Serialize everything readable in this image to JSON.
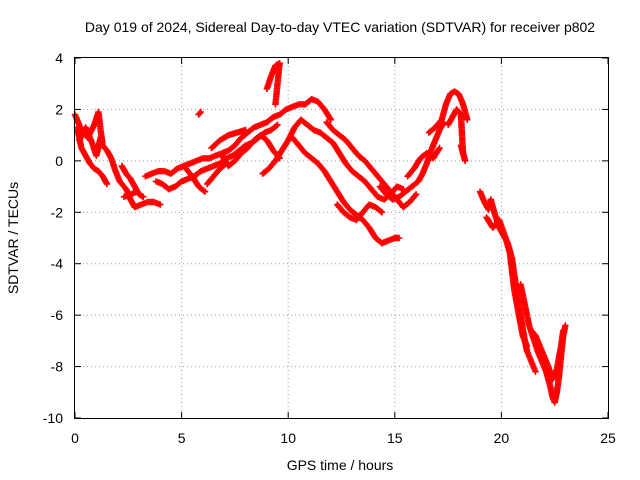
{
  "chart_data": {
    "type": "scatter",
    "title": "Day 019 of 2024, Sidereal Day-to-day VTEC variation (SDTVAR) for receiver p802",
    "xlabel": "GPS time / hours",
    "ylabel": "SDTVAR / TECUs",
    "xlim": [
      0,
      25
    ],
    "ylim": [
      -10,
      4
    ],
    "xticks": [
      0,
      5,
      10,
      15,
      20,
      25
    ],
    "yticks": [
      -10,
      -8,
      -6,
      -4,
      -2,
      0,
      2,
      4
    ],
    "xtick_labels": [
      "0",
      "5",
      "10",
      "15",
      "20",
      "25"
    ],
    "ytick_labels": [
      "-10",
      "-8",
      "-6",
      "-4",
      "-2",
      "0",
      "2",
      "4"
    ],
    "grid": true,
    "marker": "+",
    "series": [
      {
        "name": "p802",
        "color": "#ff0000",
        "tracks": [
          [
            [
              0.0,
              1.8
            ],
            [
              0.3,
              1.2
            ],
            [
              0.6,
              0.9
            ],
            [
              0.9,
              1.4
            ],
            [
              1.1,
              1.9
            ],
            [
              1.2,
              1.2
            ],
            [
              1.3,
              0.6
            ],
            [
              1.5,
              0.4
            ],
            [
              1.7,
              0.1
            ],
            [
              1.9,
              -0.4
            ],
            [
              2.1,
              -0.8
            ],
            [
              2.4,
              -1.1
            ],
            [
              2.6,
              -1.5
            ],
            [
              2.8,
              -1.8
            ],
            [
              3.1,
              -1.7
            ],
            [
              3.4,
              -1.6
            ],
            [
              3.7,
              -1.6
            ],
            [
              4.0,
              -1.7
            ]
          ],
          [
            [
              0.1,
              1.3
            ],
            [
              0.3,
              0.5
            ],
            [
              0.5,
              0.2
            ],
            [
              0.7,
              -0.1
            ],
            [
              0.9,
              -0.3
            ],
            [
              1.1,
              -0.4
            ],
            [
              1.3,
              -0.6
            ],
            [
              1.5,
              -0.9
            ]
          ],
          [
            [
              0.2,
              0.8
            ],
            [
              0.5,
              1.3
            ],
            [
              0.8,
              0.7
            ],
            [
              1.0,
              0.2
            ],
            [
              1.2,
              0.9
            ]
          ],
          [
            [
              2.2,
              -0.2
            ],
            [
              2.4,
              -0.5
            ],
            [
              2.6,
              -0.7
            ],
            [
              2.8,
              -1.0
            ],
            [
              3.0,
              -1.3
            ],
            [
              3.2,
              -1.4
            ]
          ],
          [
            [
              2.3,
              -1.4
            ],
            [
              2.6,
              -1.3
            ],
            [
              2.9,
              -1.2
            ]
          ],
          [
            [
              3.3,
              -0.6
            ],
            [
              3.6,
              -0.5
            ],
            [
              3.9,
              -0.4
            ],
            [
              4.2,
              -0.4
            ],
            [
              4.5,
              -0.5
            ],
            [
              4.8,
              -0.3
            ],
            [
              5.1,
              -0.2
            ],
            [
              5.4,
              -0.1
            ],
            [
              5.7,
              0.0
            ],
            [
              6.0,
              0.1
            ],
            [
              6.3,
              0.1
            ],
            [
              6.6,
              0.2
            ],
            [
              6.9,
              0.3
            ],
            [
              7.2,
              0.4
            ],
            [
              7.5,
              0.6
            ],
            [
              7.8,
              0.9
            ],
            [
              8.1,
              1.1
            ],
            [
              8.4,
              1.3
            ],
            [
              8.7,
              1.4
            ],
            [
              9.0,
              1.5
            ],
            [
              9.3,
              1.7
            ],
            [
              9.6,
              1.8
            ],
            [
              9.9,
              2.0
            ],
            [
              10.2,
              2.1
            ],
            [
              10.5,
              2.2
            ],
            [
              10.8,
              2.2
            ],
            [
              11.1,
              2.4
            ],
            [
              11.4,
              2.3
            ],
            [
              11.7,
              2.0
            ],
            [
              12.0,
              1.6
            ]
          ],
          [
            [
              3.8,
              -0.8
            ],
            [
              4.1,
              -0.9
            ],
            [
              4.4,
              -1.1
            ],
            [
              4.7,
              -1.0
            ],
            [
              5.0,
              -0.8
            ],
            [
              5.3,
              -0.7
            ],
            [
              5.6,
              -0.6
            ],
            [
              5.9,
              -0.4
            ],
            [
              6.2,
              -0.3
            ],
            [
              6.5,
              -0.2
            ],
            [
              6.8,
              -0.1
            ],
            [
              7.1,
              0.1
            ],
            [
              7.4,
              0.2
            ],
            [
              7.7,
              0.4
            ],
            [
              8.0,
              0.6
            ],
            [
              8.3,
              0.7
            ],
            [
              8.6,
              0.9
            ],
            [
              8.9,
              1.1
            ],
            [
              9.2,
              1.2
            ],
            [
              9.5,
              1.4
            ]
          ],
          [
            [
              5.2,
              -0.3
            ],
            [
              5.5,
              -0.6
            ],
            [
              5.8,
              -1.0
            ],
            [
              6.1,
              -1.2
            ]
          ],
          [
            [
              6.2,
              -0.9
            ],
            [
              6.5,
              -0.6
            ],
            [
              6.8,
              -0.3
            ],
            [
              7.1,
              -0.1
            ]
          ],
          [
            [
              5.8,
              1.8
            ],
            [
              5.9,
              1.9
            ]
          ],
          [
            [
              6.4,
              0.5
            ],
            [
              6.8,
              0.8
            ],
            [
              7.2,
              1.0
            ],
            [
              7.6,
              1.1
            ],
            [
              8.0,
              1.2
            ]
          ],
          [
            [
              6.9,
              0.2
            ],
            [
              7.2,
              -0.2
            ],
            [
              7.5,
              0.0
            ],
            [
              7.8,
              0.3
            ],
            [
              8.1,
              0.5
            ],
            [
              8.4,
              0.8
            ],
            [
              8.7,
              1.0
            ],
            [
              9.0,
              0.8
            ],
            [
              9.3,
              0.4
            ],
            [
              9.6,
              0.1
            ]
          ],
          [
            [
              9.0,
              2.8
            ],
            [
              9.2,
              3.3
            ],
            [
              9.4,
              3.7
            ],
            [
              9.6,
              3.8
            ],
            [
              9.5,
              3.0
            ],
            [
              9.4,
              2.2
            ]
          ],
          [
            [
              8.8,
              -0.5
            ],
            [
              9.1,
              -0.3
            ],
            [
              9.4,
              0.0
            ],
            [
              9.7,
              0.4
            ],
            [
              10.0,
              0.8
            ],
            [
              10.3,
              1.3
            ],
            [
              10.6,
              1.6
            ],
            [
              10.9,
              1.4
            ],
            [
              11.2,
              1.2
            ],
            [
              11.5,
              1.1
            ],
            [
              11.8,
              0.9
            ],
            [
              12.1,
              0.7
            ],
            [
              12.4,
              0.3
            ],
            [
              12.7,
              -0.1
            ],
            [
              13.0,
              -0.4
            ],
            [
              13.3,
              -0.6
            ],
            [
              13.6,
              -0.8
            ],
            [
              13.9,
              -1.1
            ],
            [
              14.2,
              -1.4
            ],
            [
              14.5,
              -1.5
            ],
            [
              14.8,
              -1.3
            ],
            [
              15.1,
              -1.0
            ],
            [
              15.4,
              -1.1
            ]
          ],
          [
            [
              10.2,
              0.9
            ],
            [
              10.5,
              0.6
            ],
            [
              10.8,
              0.3
            ],
            [
              11.1,
              0.1
            ],
            [
              11.4,
              -0.1
            ],
            [
              11.7,
              -0.4
            ],
            [
              12.0,
              -0.8
            ],
            [
              12.3,
              -1.2
            ],
            [
              12.6,
              -1.6
            ],
            [
              12.9,
              -1.9
            ],
            [
              13.2,
              -2.1
            ],
            [
              13.5,
              -2.3
            ],
            [
              13.8,
              -2.6
            ],
            [
              14.1,
              -3.0
            ],
            [
              14.4,
              -3.2
            ],
            [
              14.7,
              -3.1
            ],
            [
              15.0,
              -3.0
            ],
            [
              15.2,
              -3.0
            ]
          ],
          [
            [
              11.8,
              1.5
            ],
            [
              12.1,
              1.2
            ],
            [
              12.4,
              1.0
            ],
            [
              12.7,
              0.8
            ],
            [
              13.0,
              0.5
            ],
            [
              13.3,
              0.2
            ],
            [
              13.6,
              0.0
            ],
            [
              13.9,
              -0.3
            ],
            [
              14.2,
              -0.6
            ],
            [
              14.5,
              -0.9
            ],
            [
              14.8,
              -1.2
            ],
            [
              15.1,
              -1.5
            ],
            [
              15.4,
              -1.8
            ],
            [
              15.7,
              -1.6
            ],
            [
              16.0,
              -1.3
            ]
          ],
          [
            [
              12.3,
              -1.7
            ],
            [
              12.6,
              -2.0
            ],
            [
              12.9,
              -2.2
            ],
            [
              13.2,
              -2.3
            ],
            [
              13.5,
              -2.0
            ],
            [
              13.8,
              -1.7
            ],
            [
              14.1,
              -1.8
            ],
            [
              14.4,
              -2.0
            ]
          ],
          [
            [
              14.3,
              -1.0
            ],
            [
              14.6,
              -1.3
            ],
            [
              14.9,
              -1.5
            ],
            [
              15.2,
              -1.4
            ],
            [
              15.5,
              -1.2
            ],
            [
              15.8,
              -1.0
            ],
            [
              16.1,
              -0.8
            ],
            [
              16.3,
              -0.5
            ],
            [
              16.5,
              -0.1
            ],
            [
              16.7,
              0.4
            ],
            [
              16.9,
              0.8
            ],
            [
              17.1,
              1.2
            ],
            [
              17.3,
              1.5
            ]
          ],
          [
            [
              15.6,
              -0.6
            ],
            [
              15.9,
              -0.3
            ],
            [
              16.2,
              0.1
            ],
            [
              16.5,
              0.3
            ],
            [
              16.8,
              0.1
            ],
            [
              17.1,
              0.5
            ]
          ],
          [
            [
              16.6,
              1.1
            ],
            [
              16.9,
              1.3
            ],
            [
              17.2,
              1.6
            ],
            [
              17.4,
              2.2
            ],
            [
              17.6,
              2.6
            ],
            [
              17.8,
              2.7
            ],
            [
              18.0,
              2.6
            ],
            [
              18.2,
              2.2
            ],
            [
              18.4,
              1.6
            ]
          ],
          [
            [
              17.5,
              1.4
            ],
            [
              17.7,
              1.7
            ],
            [
              17.9,
              2.0
            ],
            [
              18.1,
              1.8
            ],
            [
              18.2,
              0.3
            ],
            [
              18.3,
              0.0
            ],
            [
              18.1,
              0.6
            ]
          ],
          [
            [
              19.0,
              -1.2
            ],
            [
              19.2,
              -1.6
            ],
            [
              19.4,
              -1.9
            ],
            [
              19.5,
              -1.5
            ],
            [
              19.7,
              -2.1
            ],
            [
              19.9,
              -2.6
            ],
            [
              20.1,
              -2.9
            ],
            [
              20.3,
              -3.2
            ],
            [
              20.5,
              -3.8
            ],
            [
              20.6,
              -4.4
            ],
            [
              20.7,
              -4.9
            ],
            [
              20.8,
              -5.5
            ],
            [
              20.9,
              -6.0
            ],
            [
              21.0,
              -6.5
            ],
            [
              21.1,
              -7.0
            ],
            [
              21.2,
              -7.4
            ],
            [
              21.3,
              -7.6
            ],
            [
              21.4,
              -7.8
            ],
            [
              21.5,
              -8.0
            ],
            [
              21.6,
              -8.2
            ]
          ],
          [
            [
              19.3,
              -2.2
            ],
            [
              19.6,
              -2.6
            ],
            [
              19.9,
              -2.3
            ],
            [
              20.2,
              -3.0
            ],
            [
              20.4,
              -3.6
            ],
            [
              20.6,
              -5.0
            ],
            [
              20.8,
              -5.9
            ],
            [
              21.0,
              -6.8
            ],
            [
              21.2,
              -7.2
            ]
          ],
          [
            [
              20.9,
              -4.8
            ],
            [
              21.1,
              -5.6
            ],
            [
              21.3,
              -6.4
            ],
            [
              21.5,
              -6.9
            ],
            [
              21.7,
              -7.4
            ],
            [
              21.9,
              -7.8
            ],
            [
              22.1,
              -8.2
            ],
            [
              22.3,
              -8.8
            ],
            [
              22.4,
              -9.2
            ],
            [
              22.5,
              -9.4
            ],
            [
              22.6,
              -9.0
            ],
            [
              22.7,
              -8.4
            ],
            [
              22.8,
              -7.6
            ],
            [
              22.9,
              -6.8
            ],
            [
              23.0,
              -6.4
            ]
          ],
          [
            [
              21.4,
              -6.6
            ],
            [
              21.6,
              -6.8
            ],
            [
              21.8,
              -7.2
            ],
            [
              22.0,
              -7.6
            ],
            [
              22.2,
              -8.0
            ],
            [
              22.4,
              -8.5
            ],
            [
              22.6,
              -8.1
            ],
            [
              22.8,
              -7.2
            ],
            [
              22.9,
              -6.6
            ]
          ]
        ]
      }
    ]
  }
}
